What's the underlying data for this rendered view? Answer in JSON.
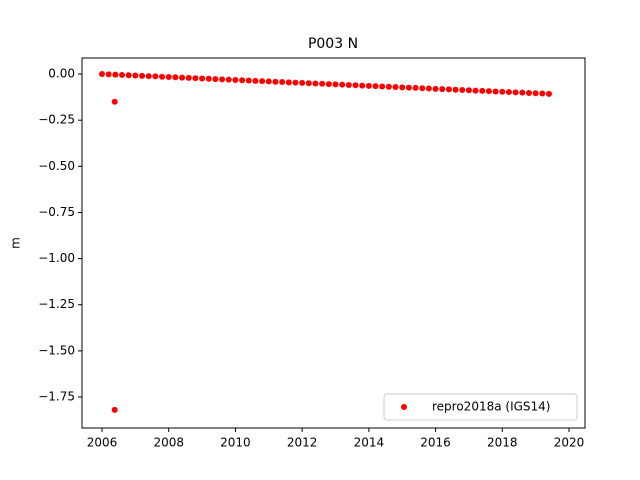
{
  "chart_data": {
    "type": "scatter",
    "title": "P003 N",
    "ylabel": "m",
    "series": [
      {
        "name": "repro2018a (IGS14)",
        "color": "#ff0000",
        "x": [
          2006,
          2006.2,
          2006.4,
          2006.6,
          2006.8,
          2007,
          2007.2,
          2007.4,
          2007.6,
          2007.8,
          2008,
          2008.2,
          2008.4,
          2008.6,
          2008.8,
          2009,
          2009.2,
          2009.4,
          2009.6,
          2009.8,
          2010,
          2010.2,
          2010.4,
          2010.6,
          2010.8,
          2011,
          2011.2,
          2011.4,
          2011.6,
          2011.8,
          2012,
          2012.2,
          2012.4,
          2012.6,
          2012.8,
          2013,
          2013.2,
          2013.4,
          2013.6,
          2013.8,
          2014,
          2014.2,
          2014.4,
          2014.6,
          2014.8,
          2015,
          2015.2,
          2015.4,
          2015.6,
          2015.8,
          2016,
          2016.2,
          2016.4,
          2016.6,
          2016.8,
          2017,
          2017.2,
          2017.4,
          2017.6,
          2017.8,
          2018,
          2018.2,
          2018.4,
          2018.6,
          2018.8,
          2019,
          2019.2,
          2019.4,
          2006.38,
          2006.38
        ],
        "values": [
          0,
          -0.0016,
          -0.0032,
          -0.0048,
          -0.0064,
          -0.008,
          -0.0096,
          -0.0112,
          -0.0128,
          -0.0144,
          -0.016,
          -0.0176,
          -0.0192,
          -0.0208,
          -0.0224,
          -0.024,
          -0.0256,
          -0.0272,
          -0.0288,
          -0.0304,
          -0.032,
          -0.0336,
          -0.0352,
          -0.0368,
          -0.0384,
          -0.04,
          -0.0416,
          -0.0432,
          -0.0448,
          -0.0464,
          -0.048,
          -0.0496,
          -0.0512,
          -0.0528,
          -0.0544,
          -0.056,
          -0.0576,
          -0.0592,
          -0.0608,
          -0.0624,
          -0.064,
          -0.0656,
          -0.0672,
          -0.0688,
          -0.0704,
          -0.072,
          -0.0736,
          -0.0752,
          -0.0768,
          -0.0784,
          -0.08,
          -0.0816,
          -0.0832,
          -0.0848,
          -0.0864,
          -0.088,
          -0.0896,
          -0.0912,
          -0.0928,
          -0.0944,
          -0.096,
          -0.0976,
          -0.0992,
          -0.1008,
          -0.1024,
          -0.104,
          -0.1056,
          -0.1072,
          -0.15,
          -1.82
        ]
      }
    ],
    "xlim": [
      2005.4,
      2020.48
    ],
    "xticks": [
      2006,
      2008,
      2010,
      2012,
      2014,
      2016,
      2018,
      2020
    ],
    "ylim": [
      -1.918,
      0.087
    ],
    "yticks": [
      {
        "value": 0,
        "label": "0.00"
      },
      {
        "value": -0.25,
        "label": "−0.25"
      },
      {
        "value": -0.5,
        "label": "−0.50"
      },
      {
        "value": -0.75,
        "label": "−0.75"
      },
      {
        "value": -1,
        "label": "−1.00"
      },
      {
        "value": -1.25,
        "label": "−1.25"
      },
      {
        "value": -1.5,
        "label": "−1.50"
      },
      {
        "value": -1.75,
        "label": "−1.75"
      }
    ],
    "grid": false,
    "legend": "lower right"
  }
}
